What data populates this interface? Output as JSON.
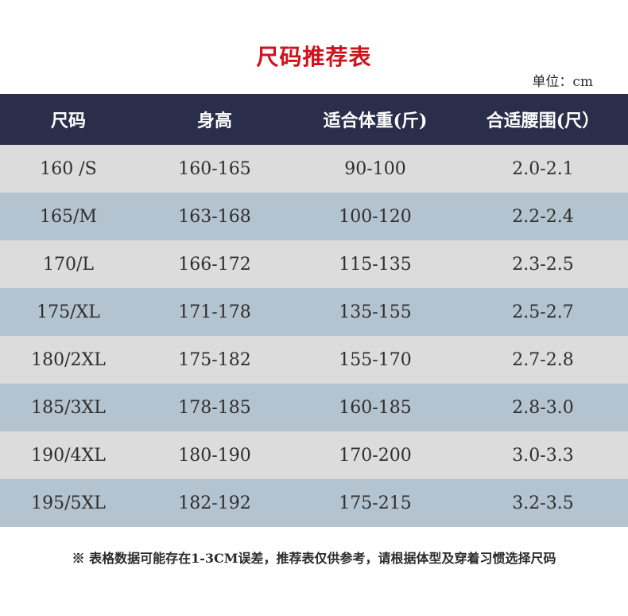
{
  "title": "尺码推荐表",
  "unit": "单位：cm",
  "table": {
    "headers": [
      "尺码",
      "身高",
      "适合体重(斤)",
      "合适腰围(尺）"
    ],
    "rows": [
      [
        "160 /S",
        "160-165",
        "90-100",
        "2.0-2.1"
      ],
      [
        "165/M",
        "163-168",
        "100-120",
        "2.2-2.4"
      ],
      [
        "170/L",
        "166-172",
        "115-135",
        "2.3-2.5"
      ],
      [
        "175/XL",
        "171-178",
        "135-155",
        "2.5-2.7"
      ],
      [
        "180/2XL",
        "175-182",
        "155-170",
        "2.7-2.8"
      ],
      [
        "185/3XL",
        "178-185",
        "160-185",
        "2.8-3.0"
      ],
      [
        "190/4XL",
        "180-190",
        "170-200",
        "3.0-3.3"
      ],
      [
        "195/5XL",
        "182-192",
        "175-215",
        "3.2-3.5"
      ]
    ]
  },
  "note": "※ 表格数据可能存在1-3CM误差，推荐表仅供参考，请根据体型及穿着习惯选择尺码",
  "colors": {
    "title": "#d0121b",
    "header_bg": "#2a2e4a",
    "row_light": "#dcdcdc",
    "row_blue": "#b3c3cf"
  }
}
